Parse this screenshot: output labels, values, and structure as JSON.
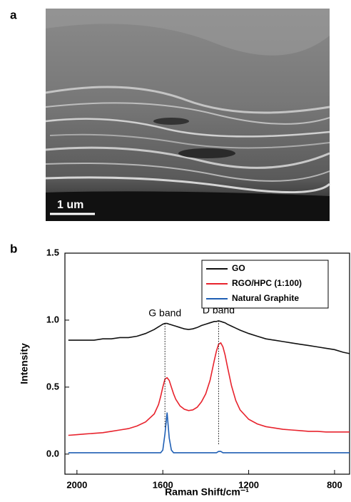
{
  "panel_labels": [
    "a",
    "b"
  ],
  "image_panel": {
    "scale_bar": "1 um"
  },
  "chart_data": {
    "type": "line",
    "xlabel": "Raman Shift/cm⁻¹",
    "ylabel": "Intensity",
    "x": [
      2040,
      2000,
      1960,
      1920,
      1880,
      1840,
      1800,
      1760,
      1720,
      1680,
      1640,
      1620,
      1610,
      1600,
      1590,
      1580,
      1570,
      1560,
      1550,
      1540,
      1520,
      1500,
      1480,
      1460,
      1440,
      1420,
      1400,
      1380,
      1360,
      1350,
      1340,
      1330,
      1320,
      1310,
      1300,
      1280,
      1260,
      1240,
      1200,
      1160,
      1120,
      1080,
      1040,
      1000,
      960,
      920,
      880,
      840,
      800,
      760,
      730
    ],
    "series": [
      {
        "name": "GO",
        "color": "#111111",
        "values": [
          0.85,
          0.85,
          0.85,
          0.85,
          0.86,
          0.86,
          0.87,
          0.87,
          0.88,
          0.9,
          0.93,
          0.95,
          0.96,
          0.97,
          0.975,
          0.975,
          0.97,
          0.965,
          0.96,
          0.955,
          0.945,
          0.935,
          0.93,
          0.935,
          0.945,
          0.96,
          0.97,
          0.98,
          0.99,
          0.99,
          0.995,
          0.99,
          0.985,
          0.98,
          0.97,
          0.955,
          0.94,
          0.925,
          0.9,
          0.88,
          0.86,
          0.85,
          0.84,
          0.83,
          0.82,
          0.81,
          0.8,
          0.79,
          0.78,
          0.76,
          0.75
        ]
      },
      {
        "name": "RGO/HPC (1:100)",
        "color": "#e8232d",
        "values": [
          0.14,
          0.145,
          0.15,
          0.155,
          0.16,
          0.17,
          0.18,
          0.19,
          0.21,
          0.24,
          0.3,
          0.37,
          0.43,
          0.5,
          0.56,
          0.57,
          0.55,
          0.5,
          0.45,
          0.41,
          0.36,
          0.335,
          0.325,
          0.33,
          0.35,
          0.39,
          0.45,
          0.55,
          0.7,
          0.77,
          0.82,
          0.83,
          0.8,
          0.74,
          0.66,
          0.51,
          0.4,
          0.33,
          0.26,
          0.225,
          0.205,
          0.195,
          0.185,
          0.18,
          0.175,
          0.17,
          0.17,
          0.165,
          0.165,
          0.165,
          0.165
        ]
      },
      {
        "name": "Natural Graphite",
        "color": "#1f5fb4",
        "values": [
          0.01,
          0.01,
          0.01,
          0.01,
          0.01,
          0.01,
          0.01,
          0.01,
          0.01,
          0.01,
          0.01,
          0.01,
          0.01,
          0.03,
          0.15,
          0.31,
          0.12,
          0.03,
          0.01,
          0.01,
          0.01,
          0.01,
          0.01,
          0.01,
          0.01,
          0.01,
          0.01,
          0.01,
          0.01,
          0.01,
          0.02,
          0.02,
          0.01,
          0.01,
          0.01,
          0.01,
          0.01,
          0.01,
          0.01,
          0.01,
          0.01,
          0.01,
          0.01,
          0.01,
          0.01,
          0.01,
          0.01,
          0.01,
          0.01,
          0.01,
          0.01
        ]
      }
    ],
    "annotations": [
      {
        "text": "G band",
        "x": 1590
      },
      {
        "text": "D band",
        "x": 1340
      }
    ],
    "xlim": [
      2056,
      730
    ],
    "xticks": [
      2000,
      1600,
      1200,
      800
    ],
    "ylim": [
      -0.15,
      1.5
    ],
    "yticks": [
      {
        "value": 0,
        "label": "0.0"
      },
      {
        "value": 0.5,
        "label": "0.5"
      },
      {
        "value": 1,
        "label": "1.0"
      },
      {
        "value": 1.5,
        "label": "1.5"
      }
    ],
    "legend": "upper right"
  }
}
